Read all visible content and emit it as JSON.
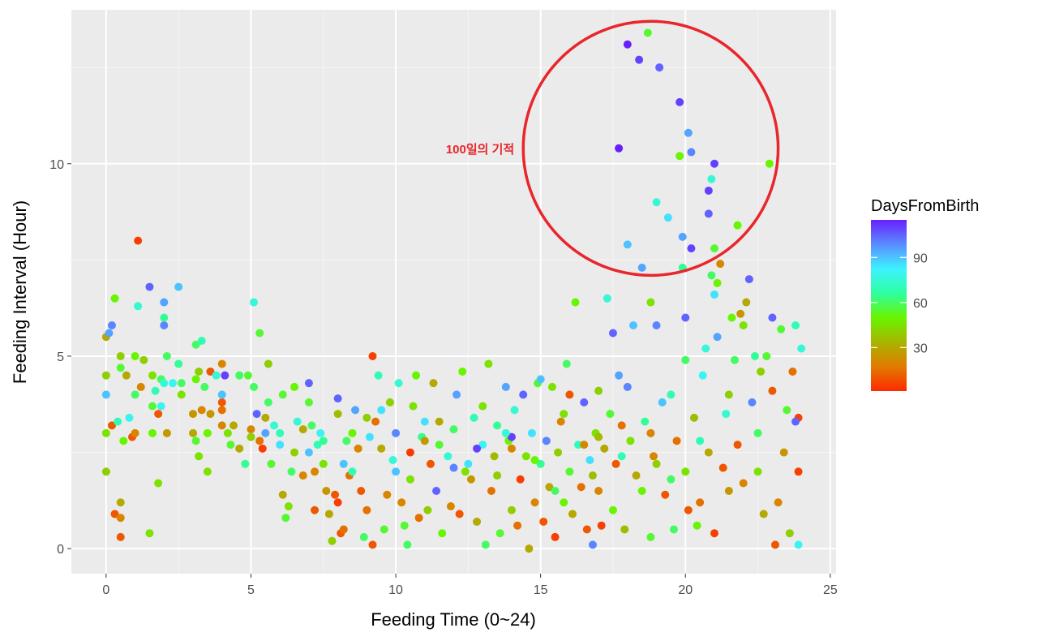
{
  "chart_data": {
    "type": "scatter",
    "title": "",
    "xlabel": "Feeding Time (0~24)",
    "ylabel": "Feeding Interval (Hour)",
    "xlim": [
      -1.2,
      25.2
    ],
    "ylim": [
      -0.65,
      14.0
    ],
    "x_ticks": [
      0,
      5,
      10,
      15,
      20,
      25
    ],
    "y_ticks": [
      0,
      5,
      10
    ],
    "x_tick_labels": [
      "0",
      "5",
      "10",
      "15",
      "20",
      "25"
    ],
    "y_tick_labels": [
      "0",
      "5",
      "10"
    ],
    "grid": true,
    "color_by": "DaysFromBirth",
    "legend": {
      "title": "DaysFromBirth",
      "position": "right",
      "range": [
        1,
        115
      ],
      "ticks": [
        30,
        60,
        90
      ],
      "tick_labels": [
        "30",
        "60",
        "90"
      ],
      "colors": [
        "#ff2a00",
        "#e17b00",
        "#a8b400",
        "#69f500",
        "#2dffa0",
        "#3ef2ff",
        "#5a8dff",
        "#6a1fff"
      ]
    },
    "annotation": {
      "text": "100일의 기적",
      "circle_center": [
        18.8,
        10.4
      ],
      "circle_radius_x": 4.4,
      "circle_radius_y": 3.3,
      "color": "#e8262b"
    },
    "points": [
      [
        0.0,
        5.5,
        30
      ],
      [
        0.0,
        4.5,
        40
      ],
      [
        0.0,
        3.0,
        45
      ],
      [
        0.0,
        2.0,
        40
      ],
      [
        0.0,
        4.0,
        90
      ],
      [
        0.1,
        5.6,
        95
      ],
      [
        0.2,
        5.8,
        100
      ],
      [
        0.2,
        3.2,
        10
      ],
      [
        0.3,
        6.5,
        50
      ],
      [
        0.3,
        0.9,
        10
      ],
      [
        0.4,
        3.3,
        70
      ],
      [
        0.5,
        4.7,
        55
      ],
      [
        0.5,
        5.0,
        40
      ],
      [
        0.5,
        0.3,
        10
      ],
      [
        0.5,
        1.2,
        30
      ],
      [
        0.5,
        0.8,
        20
      ],
      [
        0.6,
        2.8,
        50
      ],
      [
        0.7,
        4.5,
        30
      ],
      [
        0.8,
        3.4,
        80
      ],
      [
        0.9,
        2.9,
        10
      ],
      [
        1.0,
        3.0,
        20
      ],
      [
        1.0,
        4.0,
        60
      ],
      [
        1.0,
        5.0,
        50
      ],
      [
        1.1,
        8.0,
        5
      ],
      [
        1.1,
        6.3,
        75
      ],
      [
        1.2,
        4.2,
        20
      ],
      [
        1.3,
        4.9,
        40
      ],
      [
        1.5,
        6.8,
        105
      ],
      [
        1.5,
        0.4,
        45
      ],
      [
        1.6,
        4.5,
        45
      ],
      [
        1.6,
        3.7,
        55
      ],
      [
        1.6,
        3.0,
        50
      ],
      [
        1.7,
        4.1,
        70
      ],
      [
        1.8,
        3.5,
        10
      ],
      [
        1.8,
        1.7,
        45
      ],
      [
        1.9,
        4.4,
        60
      ],
      [
        1.9,
        3.7,
        80
      ],
      [
        2.0,
        6.4,
        95
      ],
      [
        2.0,
        5.8,
        100
      ],
      [
        2.0,
        6.0,
        65
      ],
      [
        2.0,
        4.3,
        75
      ],
      [
        2.1,
        5.0,
        60
      ],
      [
        2.1,
        3.0,
        25
      ],
      [
        2.3,
        4.3,
        80
      ],
      [
        2.5,
        6.8,
        90
      ],
      [
        2.5,
        4.8,
        65
      ],
      [
        2.6,
        4.3,
        60
      ],
      [
        2.6,
        4.0,
        45
      ],
      [
        3.0,
        3.0,
        30
      ],
      [
        3.0,
        3.5,
        25
      ],
      [
        3.1,
        4.4,
        50
      ],
      [
        3.1,
        5.3,
        60
      ],
      [
        3.1,
        2.8,
        55
      ],
      [
        3.2,
        4.6,
        40
      ],
      [
        3.2,
        2.4,
        45
      ],
      [
        3.3,
        5.4,
        70
      ],
      [
        3.3,
        3.6,
        20
      ],
      [
        3.4,
        4.2,
        60
      ],
      [
        3.5,
        3.0,
        50
      ],
      [
        3.5,
        2.0,
        45
      ],
      [
        3.6,
        3.5,
        25
      ],
      [
        3.6,
        4.6,
        10
      ],
      [
        3.8,
        4.5,
        75
      ],
      [
        4.0,
        4.8,
        20
      ],
      [
        4.0,
        3.8,
        10
      ],
      [
        4.0,
        3.6,
        15
      ],
      [
        4.0,
        4.0,
        90
      ],
      [
        4.0,
        3.2,
        20
      ],
      [
        4.1,
        4.5,
        110
      ],
      [
        4.2,
        3.0,
        45
      ],
      [
        4.3,
        2.7,
        55
      ],
      [
        4.4,
        3.2,
        30
      ],
      [
        4.6,
        4.5,
        60
      ],
      [
        4.6,
        2.6,
        30
      ],
      [
        4.8,
        2.2,
        65
      ],
      [
        4.9,
        4.5,
        55
      ],
      [
        5.0,
        3.1,
        20
      ],
      [
        5.0,
        2.9,
        40
      ],
      [
        5.1,
        6.4,
        75
      ],
      [
        5.1,
        4.2,
        60
      ],
      [
        5.2,
        3.5,
        105
      ],
      [
        5.3,
        5.6,
        55
      ],
      [
        5.3,
        2.8,
        15
      ],
      [
        5.4,
        2.6,
        5
      ],
      [
        5.5,
        3.4,
        30
      ],
      [
        5.5,
        3.0,
        95
      ],
      [
        5.6,
        4.8,
        40
      ],
      [
        5.6,
        3.8,
        60
      ],
      [
        5.7,
        2.2,
        55
      ],
      [
        5.8,
        3.2,
        75
      ],
      [
        6.0,
        3.0,
        70
      ],
      [
        6.0,
        2.7,
        85
      ],
      [
        6.1,
        4.0,
        55
      ],
      [
        6.1,
        1.4,
        30
      ],
      [
        6.2,
        0.8,
        55
      ],
      [
        6.3,
        1.1,
        45
      ],
      [
        6.4,
        2.0,
        60
      ],
      [
        6.5,
        4.2,
        50
      ],
      [
        6.6,
        3.3,
        75
      ],
      [
        6.8,
        3.1,
        30
      ],
      [
        6.8,
        1.9,
        20
      ],
      [
        7.0,
        2.5,
        90
      ],
      [
        7.0,
        3.8,
        55
      ],
      [
        7.0,
        4.3,
        105
      ],
      [
        7.1,
        3.2,
        60
      ],
      [
        7.2,
        1.0,
        10
      ],
      [
        7.2,
        2.0,
        20
      ],
      [
        7.3,
        2.7,
        70
      ],
      [
        7.4,
        3.0,
        80
      ],
      [
        7.5,
        2.2,
        45
      ],
      [
        7.6,
        1.5,
        25
      ],
      [
        7.7,
        0.9,
        30
      ],
      [
        7.8,
        0.2,
        40
      ],
      [
        7.9,
        1.4,
        10
      ],
      [
        8.0,
        3.5,
        35
      ],
      [
        8.0,
        3.9,
        105
      ],
      [
        8.0,
        1.2,
        5
      ],
      [
        8.1,
        0.4,
        10
      ],
      [
        8.2,
        0.5,
        15
      ],
      [
        8.2,
        2.2,
        90
      ],
      [
        8.3,
        2.8,
        60
      ],
      [
        8.4,
        1.9,
        15
      ],
      [
        8.5,
        3.0,
        50
      ],
      [
        8.6,
        3.6,
        95
      ],
      [
        8.7,
        2.6,
        20
      ],
      [
        8.8,
        1.5,
        10
      ],
      [
        8.9,
        0.3,
        60
      ],
      [
        9.0,
        3.4,
        40
      ],
      [
        9.1,
        2.9,
        85
      ],
      [
        9.2,
        5.0,
        5
      ],
      [
        9.2,
        0.1,
        10
      ],
      [
        9.3,
        3.3,
        15
      ],
      [
        9.4,
        4.5,
        70
      ],
      [
        9.5,
        2.6,
        30
      ],
      [
        9.6,
        0.5,
        55
      ],
      [
        9.7,
        1.4,
        20
      ],
      [
        9.8,
        3.8,
        40
      ],
      [
        9.9,
        2.3,
        75
      ],
      [
        10.0,
        3.0,
        100
      ],
      [
        10.0,
        2.0,
        90
      ],
      [
        10.1,
        4.3,
        75
      ],
      [
        10.2,
        1.2,
        20
      ],
      [
        10.3,
        0.6,
        55
      ],
      [
        10.4,
        0.1,
        60
      ],
      [
        10.5,
        2.5,
        5
      ],
      [
        10.6,
        3.7,
        45
      ],
      [
        10.7,
        4.5,
        50
      ],
      [
        10.8,
        0.8,
        15
      ],
      [
        10.9,
        2.9,
        65
      ],
      [
        11.0,
        3.3,
        85
      ],
      [
        11.1,
        1.0,
        40
      ],
      [
        11.2,
        2.2,
        10
      ],
      [
        11.3,
        4.3,
        30
      ],
      [
        11.4,
        1.5,
        105
      ],
      [
        11.5,
        2.7,
        55
      ],
      [
        11.6,
        0.4,
        50
      ],
      [
        11.8,
        2.4,
        75
      ],
      [
        11.9,
        1.1,
        20
      ],
      [
        12.0,
        3.1,
        60
      ],
      [
        12.0,
        2.1,
        100
      ],
      [
        12.1,
        4.0,
        95
      ],
      [
        12.2,
        0.9,
        10
      ],
      [
        12.3,
        4.6,
        50
      ],
      [
        12.4,
        2.0,
        45
      ],
      [
        12.6,
        1.8,
        25
      ],
      [
        12.7,
        3.4,
        70
      ],
      [
        12.8,
        0.7,
        30
      ],
      [
        13.0,
        2.7,
        80
      ],
      [
        13.0,
        3.7,
        45
      ],
      [
        13.1,
        0.1,
        60
      ],
      [
        13.2,
        4.8,
        45
      ],
      [
        13.3,
        1.5,
        15
      ],
      [
        13.4,
        2.4,
        35
      ],
      [
        13.5,
        3.2,
        65
      ],
      [
        13.6,
        0.4,
        55
      ],
      [
        13.8,
        4.2,
        95
      ],
      [
        13.9,
        2.8,
        50
      ],
      [
        14.0,
        1.0,
        40
      ],
      [
        14.0,
        2.6,
        20
      ],
      [
        14.1,
        3.6,
        75
      ],
      [
        14.2,
        0.6,
        15
      ],
      [
        14.3,
        1.8,
        5
      ],
      [
        14.4,
        4.0,
        105
      ],
      [
        14.5,
        2.4,
        45
      ],
      [
        14.6,
        0.0,
        30
      ],
      [
        14.7,
        3.0,
        85
      ],
      [
        14.8,
        1.2,
        20
      ],
      [
        14.9,
        4.3,
        55
      ],
      [
        15.0,
        2.2,
        65
      ],
      [
        15.0,
        4.4,
        90
      ],
      [
        15.1,
        0.7,
        10
      ],
      [
        15.2,
        2.8,
        100
      ],
      [
        15.3,
        1.6,
        30
      ],
      [
        15.4,
        4.2,
        45
      ],
      [
        15.5,
        0.3,
        5
      ],
      [
        15.6,
        2.5,
        40
      ],
      [
        15.7,
        3.3,
        20
      ],
      [
        15.8,
        1.2,
        50
      ],
      [
        15.9,
        4.8,
        60
      ],
      [
        16.0,
        2.0,
        55
      ],
      [
        16.0,
        4.0,
        10
      ],
      [
        16.1,
        0.9,
        30
      ],
      [
        16.2,
        6.4,
        50
      ],
      [
        16.3,
        2.7,
        70
      ],
      [
        16.4,
        1.6,
        15
      ],
      [
        16.5,
        3.8,
        105
      ],
      [
        16.6,
        0.5,
        10
      ],
      [
        16.7,
        2.3,
        85
      ],
      [
        16.8,
        0.1,
        100
      ],
      [
        16.9,
        3.0,
        45
      ],
      [
        17.0,
        1.5,
        20
      ],
      [
        17.0,
        4.1,
        40
      ],
      [
        17.1,
        0.6,
        5
      ],
      [
        17.2,
        2.6,
        30
      ],
      [
        17.3,
        6.5,
        75
      ],
      [
        17.4,
        3.5,
        55
      ],
      [
        17.5,
        1.0,
        50
      ],
      [
        17.5,
        5.6,
        105
      ],
      [
        17.6,
        2.2,
        10
      ],
      [
        17.7,
        4.5,
        95
      ],
      [
        17.7,
        10.4,
        115
      ],
      [
        17.8,
        3.2,
        15
      ],
      [
        17.9,
        0.5,
        35
      ],
      [
        18.0,
        13.1,
        115
      ],
      [
        18.0,
        7.9,
        90
      ],
      [
        18.0,
        4.2,
        100
      ],
      [
        18.1,
        2.8,
        45
      ],
      [
        18.2,
        5.8,
        90
      ],
      [
        18.3,
        1.9,
        30
      ],
      [
        18.4,
        12.7,
        110
      ],
      [
        18.5,
        7.3,
        95
      ],
      [
        18.6,
        3.3,
        65
      ],
      [
        18.7,
        13.4,
        55
      ],
      [
        18.8,
        0.3,
        55
      ],
      [
        18.8,
        6.4,
        45
      ],
      [
        18.9,
        2.4,
        20
      ],
      [
        19.0,
        9.0,
        75
      ],
      [
        19.0,
        5.8,
        100
      ],
      [
        19.1,
        12.5,
        105
      ],
      [
        19.2,
        3.8,
        90
      ],
      [
        19.3,
        1.4,
        10
      ],
      [
        19.4,
        8.6,
        85
      ],
      [
        19.5,
        4.0,
        70
      ],
      [
        19.6,
        0.5,
        60
      ],
      [
        19.7,
        2.8,
        15
      ],
      [
        19.8,
        11.6,
        110
      ],
      [
        19.8,
        10.2,
        50
      ],
      [
        19.9,
        8.1,
        95
      ],
      [
        19.9,
        7.3,
        65
      ],
      [
        20.0,
        6.0,
        105
      ],
      [
        20.0,
        4.9,
        60
      ],
      [
        20.1,
        10.8,
        95
      ],
      [
        20.1,
        1.0,
        10
      ],
      [
        20.2,
        10.3,
        100
      ],
      [
        20.2,
        7.8,
        110
      ],
      [
        20.3,
        3.4,
        35
      ],
      [
        20.4,
        0.6,
        50
      ],
      [
        20.5,
        2.8,
        70
      ],
      [
        20.6,
        4.5,
        80
      ],
      [
        20.7,
        5.2,
        75
      ],
      [
        20.8,
        9.3,
        110
      ],
      [
        20.8,
        8.7,
        105
      ],
      [
        20.9,
        9.6,
        75
      ],
      [
        20.9,
        7.1,
        60
      ],
      [
        21.0,
        10.0,
        110
      ],
      [
        21.0,
        7.8,
        55
      ],
      [
        21.0,
        6.6,
        85
      ],
      [
        21.0,
        0.4,
        5
      ],
      [
        21.1,
        5.5,
        95
      ],
      [
        21.1,
        6.9,
        50
      ],
      [
        21.2,
        7.4,
        20
      ],
      [
        21.3,
        2.1,
        10
      ],
      [
        21.4,
        3.5,
        75
      ],
      [
        21.5,
        4.0,
        40
      ],
      [
        21.6,
        6.0,
        50
      ],
      [
        21.7,
        4.9,
        60
      ],
      [
        21.8,
        8.4,
        50
      ],
      [
        21.9,
        6.1,
        25
      ],
      [
        22.0,
        5.8,
        45
      ],
      [
        22.0,
        1.7,
        20
      ],
      [
        22.1,
        6.4,
        30
      ],
      [
        22.2,
        7.0,
        105
      ],
      [
        22.3,
        3.8,
        100
      ],
      [
        22.4,
        5.0,
        65
      ],
      [
        22.5,
        2.0,
        45
      ],
      [
        22.6,
        4.6,
        40
      ],
      [
        22.7,
        0.9,
        30
      ],
      [
        22.8,
        5.0,
        55
      ],
      [
        22.9,
        10.0,
        50
      ],
      [
        23.0,
        4.1,
        10
      ],
      [
        23.0,
        6.0,
        105
      ],
      [
        23.1,
        0.1,
        10
      ],
      [
        23.2,
        1.2,
        20
      ],
      [
        23.3,
        5.7,
        55
      ],
      [
        23.4,
        2.5,
        25
      ],
      [
        23.5,
        3.6,
        55
      ],
      [
        23.6,
        0.4,
        40
      ],
      [
        23.7,
        4.6,
        15
      ],
      [
        23.8,
        5.8,
        70
      ],
      [
        23.9,
        3.4,
        5
      ],
      [
        23.9,
        0.1,
        80
      ],
      [
        24.0,
        5.2,
        75
      ],
      [
        23.8,
        3.3,
        105
      ],
      [
        23.9,
        2.0,
        5
      ],
      [
        8.5,
        2.0,
        70
      ],
      [
        9.0,
        1.0,
        15
      ],
      [
        10.5,
        1.8,
        45
      ],
      [
        11.0,
        2.8,
        25
      ],
      [
        12.5,
        2.2,
        85
      ],
      [
        13.5,
        1.9,
        40
      ],
      [
        14.0,
        2.9,
        110
      ],
      [
        15.5,
        1.5,
        60
      ],
      [
        16.5,
        2.7,
        20
      ],
      [
        17.0,
        2.9,
        35
      ],
      [
        18.5,
        1.5,
        50
      ],
      [
        19.0,
        2.2,
        40
      ],
      [
        20.0,
        2.0,
        45
      ],
      [
        20.5,
        1.2,
        15
      ],
      [
        21.5,
        1.5,
        25
      ],
      [
        22.5,
        3.0,
        60
      ],
      [
        7.5,
        2.8,
        65
      ],
      [
        6.5,
        2.5,
        40
      ],
      [
        9.5,
        3.6,
        85
      ],
      [
        11.5,
        3.3,
        30
      ],
      [
        12.8,
        2.6,
        110
      ],
      [
        13.8,
        3.0,
        75
      ],
      [
        14.8,
        2.3,
        50
      ],
      [
        15.8,
        3.5,
        45
      ],
      [
        16.8,
        1.9,
        35
      ],
      [
        17.8,
        2.4,
        70
      ],
      [
        18.8,
        3.0,
        20
      ],
      [
        19.5,
        1.8,
        60
      ],
      [
        20.8,
        2.5,
        30
      ],
      [
        21.8,
        2.7,
        10
      ]
    ]
  }
}
